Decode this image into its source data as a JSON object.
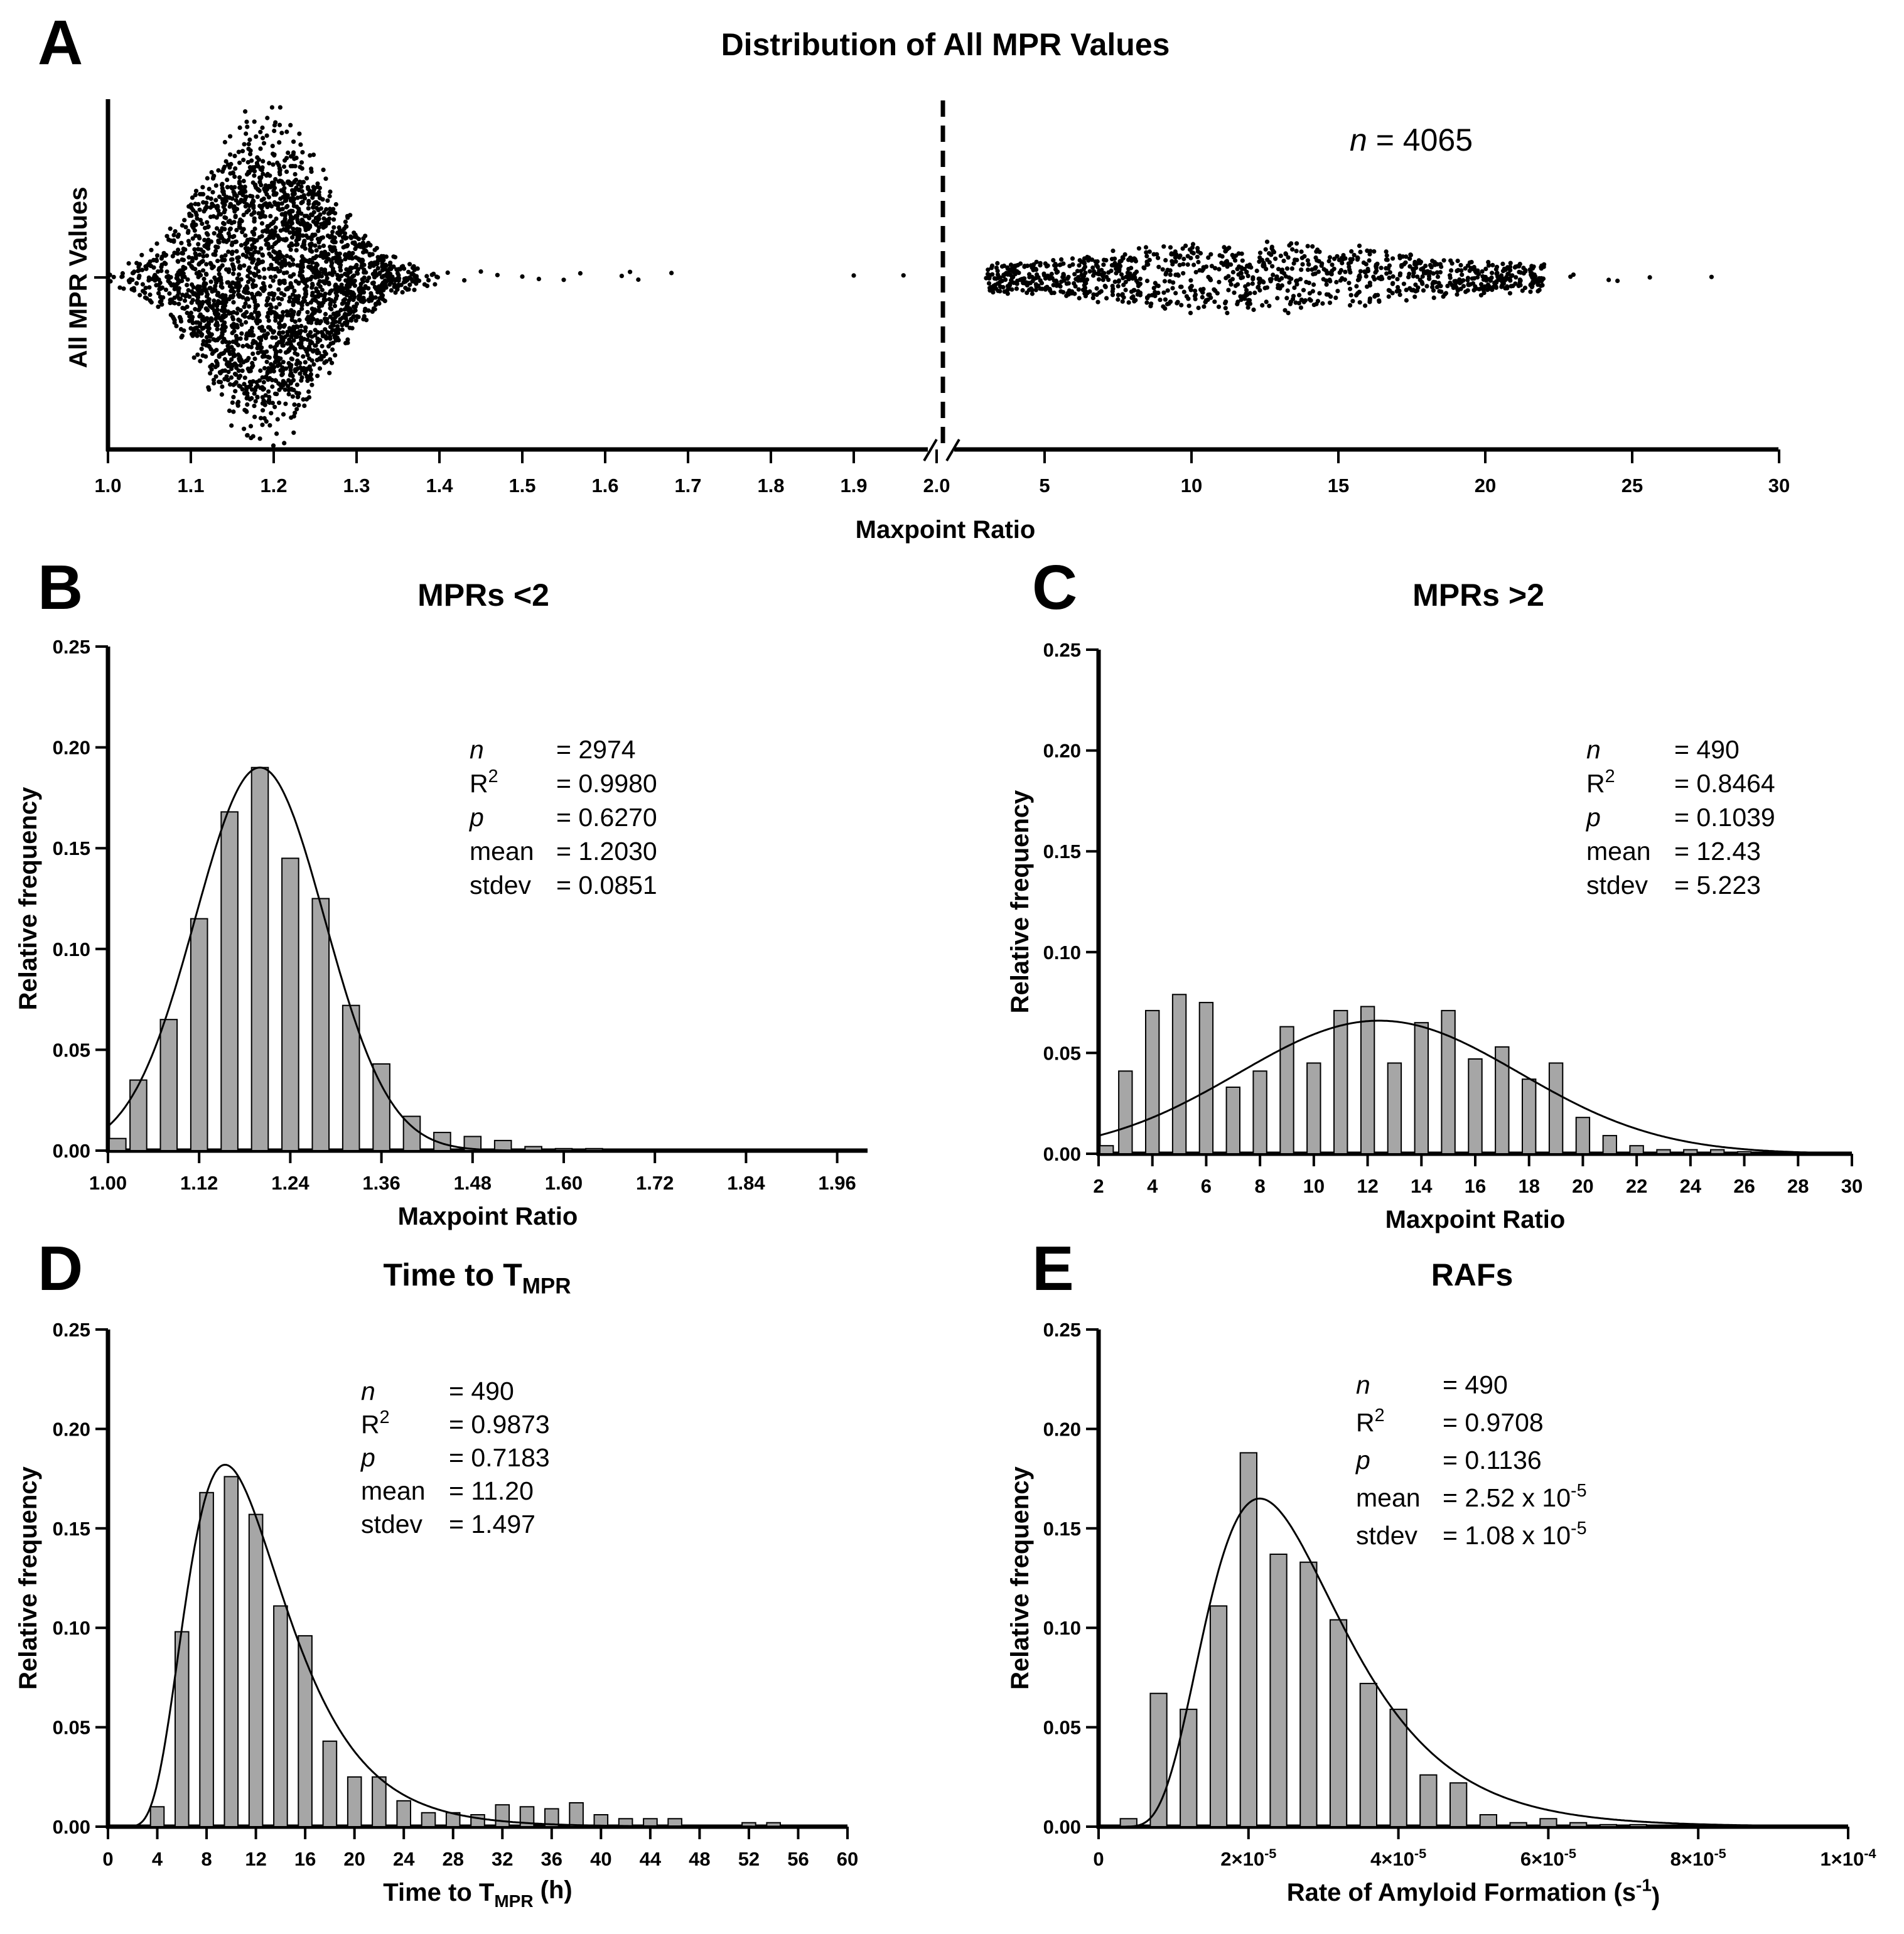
{
  "chart_data": [
    {
      "id": "A",
      "type": "scatter",
      "letter": "A",
      "title": "Distribution of All MPR Values",
      "xlabel": "Maxpoint Ratio",
      "ylabel": "All MPR Values",
      "annotation": {
        "n_symbol": "n",
        "n_text": "= 4065"
      },
      "x_axis_broken": true,
      "segment1": {
        "xlim": [
          1.0,
          2.05
        ],
        "ticks": [
          "1.0",
          "1.1",
          "1.2",
          "1.3",
          "1.4",
          "1.5",
          "1.6",
          "1.7",
          "1.8",
          "1.9",
          "2.0"
        ]
      },
      "segment2": {
        "xlim": [
          2.05,
          30
        ],
        "ticks": [
          "5",
          "10",
          "15",
          "20",
          "25",
          "30"
        ]
      },
      "split_x": 2.0,
      "outliers_low": [
        1.41,
        1.43,
        1.45,
        1.47,
        1.5,
        1.52,
        1.55,
        1.57,
        1.62,
        1.63,
        1.64,
        1.68,
        1.9,
        1.96
      ],
      "outliers_high": [
        3.3,
        22.9,
        23.0,
        24.2,
        24.5,
        25.6,
        27.7
      ]
    },
    {
      "id": "B",
      "type": "bar",
      "letter": "B",
      "title": "MPRs <2",
      "xlabel": "Maxpoint Ratio",
      "ylabel": "Relative frequency",
      "xlim": [
        1.0,
        2.0
      ],
      "ylim": [
        0,
        0.25
      ],
      "xticks": [
        "1.00",
        "1.12",
        "1.24",
        "1.36",
        "1.48",
        "1.60",
        "1.72",
        "1.84",
        "1.96"
      ],
      "yticks": [
        "0.00",
        "0.05",
        "0.10",
        "0.15",
        "0.20",
        "0.25"
      ],
      "x": [
        1.0,
        1.04,
        1.08,
        1.12,
        1.16,
        1.2,
        1.24,
        1.28,
        1.32,
        1.36,
        1.4,
        1.44,
        1.48,
        1.52,
        1.56,
        1.6,
        1.64,
        1.68,
        1.72,
        1.76,
        1.8,
        1.84,
        1.88,
        1.92,
        1.96
      ],
      "values": [
        0.006,
        0.035,
        0.065,
        0.115,
        0.168,
        0.19,
        0.145,
        0.125,
        0.072,
        0.043,
        0.017,
        0.009,
        0.007,
        0.005,
        0.002,
        0.001,
        0.001,
        0.0005,
        0.0005,
        0.0003,
        0.0003,
        0.0003,
        0,
        0,
        0
      ],
      "bar_width": 0.022,
      "fit": {
        "kind": "gaussian",
        "mean": 1.2,
        "sd": 0.0851,
        "peak": 0.19
      },
      "stats": [
        {
          "label": "n",
          "italic": true,
          "sup": "",
          "value": "= 2974"
        },
        {
          "label": "R",
          "italic": false,
          "sup": "2",
          "value": "= 0.9980"
        },
        {
          "label": "p",
          "italic": true,
          "sup": "",
          "value": "= 0.6270"
        },
        {
          "label": "mean",
          "italic": false,
          "sup": "",
          "value": "= 1.2030"
        },
        {
          "label": "stdev",
          "italic": false,
          "sup": "",
          "value": "= 0.0851"
        }
      ]
    },
    {
      "id": "C",
      "type": "bar",
      "letter": "C",
      "title": "MPRs >2",
      "xlabel": "Maxpoint Ratio",
      "ylabel": "Relative frequency",
      "xlim": [
        2,
        30
      ],
      "ylim": [
        0,
        0.25
      ],
      "xticks": [
        "2",
        "4",
        "6",
        "8",
        "10",
        "12",
        "14",
        "16",
        "18",
        "20",
        "22",
        "24",
        "26",
        "28",
        "30"
      ],
      "yticks": [
        "0.00",
        "0.05",
        "0.10",
        "0.15",
        "0.20",
        "0.25"
      ],
      "x": [
        2,
        3,
        4,
        5,
        6,
        7,
        8,
        9,
        10,
        11,
        12,
        13,
        14,
        15,
        16,
        17,
        18,
        19,
        20,
        21,
        22,
        23,
        24,
        25,
        26,
        27,
        28
      ],
      "values": [
        0.004,
        0.041,
        0.071,
        0.079,
        0.075,
        0.033,
        0.041,
        0.063,
        0.045,
        0.071,
        0.073,
        0.045,
        0.065,
        0.071,
        0.047,
        0.053,
        0.037,
        0.045,
        0.018,
        0.009,
        0.004,
        0.002,
        0.002,
        0.002,
        0.001,
        0,
        0
      ],
      "bar_width": 0.5,
      "fit": {
        "kind": "gaussian",
        "mean": 12.43,
        "sd": 5.223,
        "peak": 0.066
      },
      "stats": [
        {
          "label": "n",
          "italic": true,
          "sup": "",
          "value": "= 490"
        },
        {
          "label": "R",
          "italic": false,
          "sup": "2",
          "value": "= 0.8464"
        },
        {
          "label": "p",
          "italic": true,
          "sup": "",
          "value": "= 0.1039"
        },
        {
          "label": "mean",
          "italic": false,
          "sup": "",
          "value": "= 12.43"
        },
        {
          "label": "stdev",
          "italic": false,
          "sup": "",
          "value": "= 5.223"
        }
      ]
    },
    {
      "id": "D",
      "type": "bar",
      "letter": "D",
      "title": "Time to T",
      "title_sub": "MPR",
      "xlabel": "Time to T",
      "xlabel_sub": "MPR",
      "xlabel_suffix": " (h)",
      "ylabel": "Relative frequency",
      "xlim": [
        0,
        60
      ],
      "ylim": [
        0,
        0.25
      ],
      "xticks": [
        "0",
        "4",
        "8",
        "12",
        "16",
        "20",
        "24",
        "28",
        "32",
        "36",
        "40",
        "44",
        "48",
        "52",
        "56",
        "60"
      ],
      "yticks": [
        "0.00",
        "0.05",
        "0.10",
        "0.15",
        "0.20",
        "0.25"
      ],
      "x": [
        4,
        6,
        8,
        10,
        12,
        14,
        16,
        18,
        20,
        22,
        24,
        26,
        28,
        30,
        32,
        34,
        36,
        38,
        40,
        42,
        44,
        46,
        48,
        50,
        52,
        54
      ],
      "values": [
        0.01,
        0.098,
        0.168,
        0.176,
        0.157,
        0.111,
        0.096,
        0.043,
        0.025,
        0.025,
        0.013,
        0.007,
        0.007,
        0.006,
        0.011,
        0.01,
        0.009,
        0.012,
        0.006,
        0.004,
        0.004,
        0.004,
        0,
        0,
        0.002,
        0.002
      ],
      "bar_width": 1.1,
      "fit": {
        "kind": "lognormal",
        "mode": 9.5,
        "sigma": 0.42,
        "peak": 0.182
      },
      "stats": [
        {
          "label": "n",
          "italic": true,
          "sup": "",
          "value": "= 490"
        },
        {
          "label": "R",
          "italic": false,
          "sup": "2",
          "value": "= 0.9873"
        },
        {
          "label": "p",
          "italic": true,
          "sup": "",
          "value": "= 0.7183"
        },
        {
          "label": "mean",
          "italic": false,
          "sup": "",
          "value": "= 11.20"
        },
        {
          "label": "stdev",
          "italic": false,
          "sup": "",
          "value": "= 1.497"
        }
      ]
    },
    {
      "id": "E",
      "type": "bar",
      "letter": "E",
      "title": "RAFs",
      "xlabel": "Rate of Amyloid Formation (s",
      "xlabel_sup": "-1",
      "xlabel_suffix": ")",
      "ylabel": "Relative frequency",
      "xlim": [
        0,
        0.0001
      ],
      "ylim": [
        0,
        0.25
      ],
      "xticks": [
        {
          "base": "0",
          "exp": ""
        },
        {
          "base": "2×10",
          "exp": "-5"
        },
        {
          "base": "4×10",
          "exp": "-5"
        },
        {
          "base": "6×10",
          "exp": "-5"
        },
        {
          "base": "8×10",
          "exp": "-5"
        },
        {
          "base": "1×10",
          "exp": "-4"
        }
      ],
      "yticks": [
        "0.00",
        "0.05",
        "0.10",
        "0.15",
        "0.20",
        "0.25"
      ],
      "x": [
        4e-06,
        8e-06,
        1.2e-05,
        1.6e-05,
        2e-05,
        2.4e-05,
        2.8e-05,
        3.2e-05,
        3.6e-05,
        4e-05,
        4.4e-05,
        4.8e-05,
        5.2e-05,
        5.6e-05,
        6e-05,
        6.4e-05,
        6.8e-05,
        7.2e-05,
        7.6e-05,
        8e-05,
        8.4e-05,
        8.8e-05
      ],
      "values": [
        0.004,
        0.067,
        0.059,
        0.111,
        0.188,
        0.137,
        0.133,
        0.104,
        0.072,
        0.059,
        0.026,
        0.022,
        0.006,
        0.002,
        0.004,
        0.002,
        0.001,
        0.001,
        0.0005,
        0.0005,
        0,
        0
      ],
      "bar_width": 2.2e-06,
      "fit": {
        "kind": "lognormal",
        "mode": 2.15e-05,
        "sigma": 0.42,
        "peak": 0.165
      },
      "stats": [
        {
          "label": "n",
          "italic": true,
          "sup": "",
          "value": "= 490"
        },
        {
          "label": "R",
          "italic": false,
          "sup": "2",
          "value": "= 0.9708"
        },
        {
          "label": "p",
          "italic": true,
          "sup": "",
          "value": "= 0.1136"
        },
        {
          "label": "mean",
          "italic": false,
          "sup": "",
          "value": "= 2.52 x 10",
          "value_sup": "-5"
        },
        {
          "label": "stdev",
          "italic": false,
          "sup": "",
          "value": "= 1.08 x 10",
          "value_sup": "-5"
        }
      ]
    }
  ]
}
